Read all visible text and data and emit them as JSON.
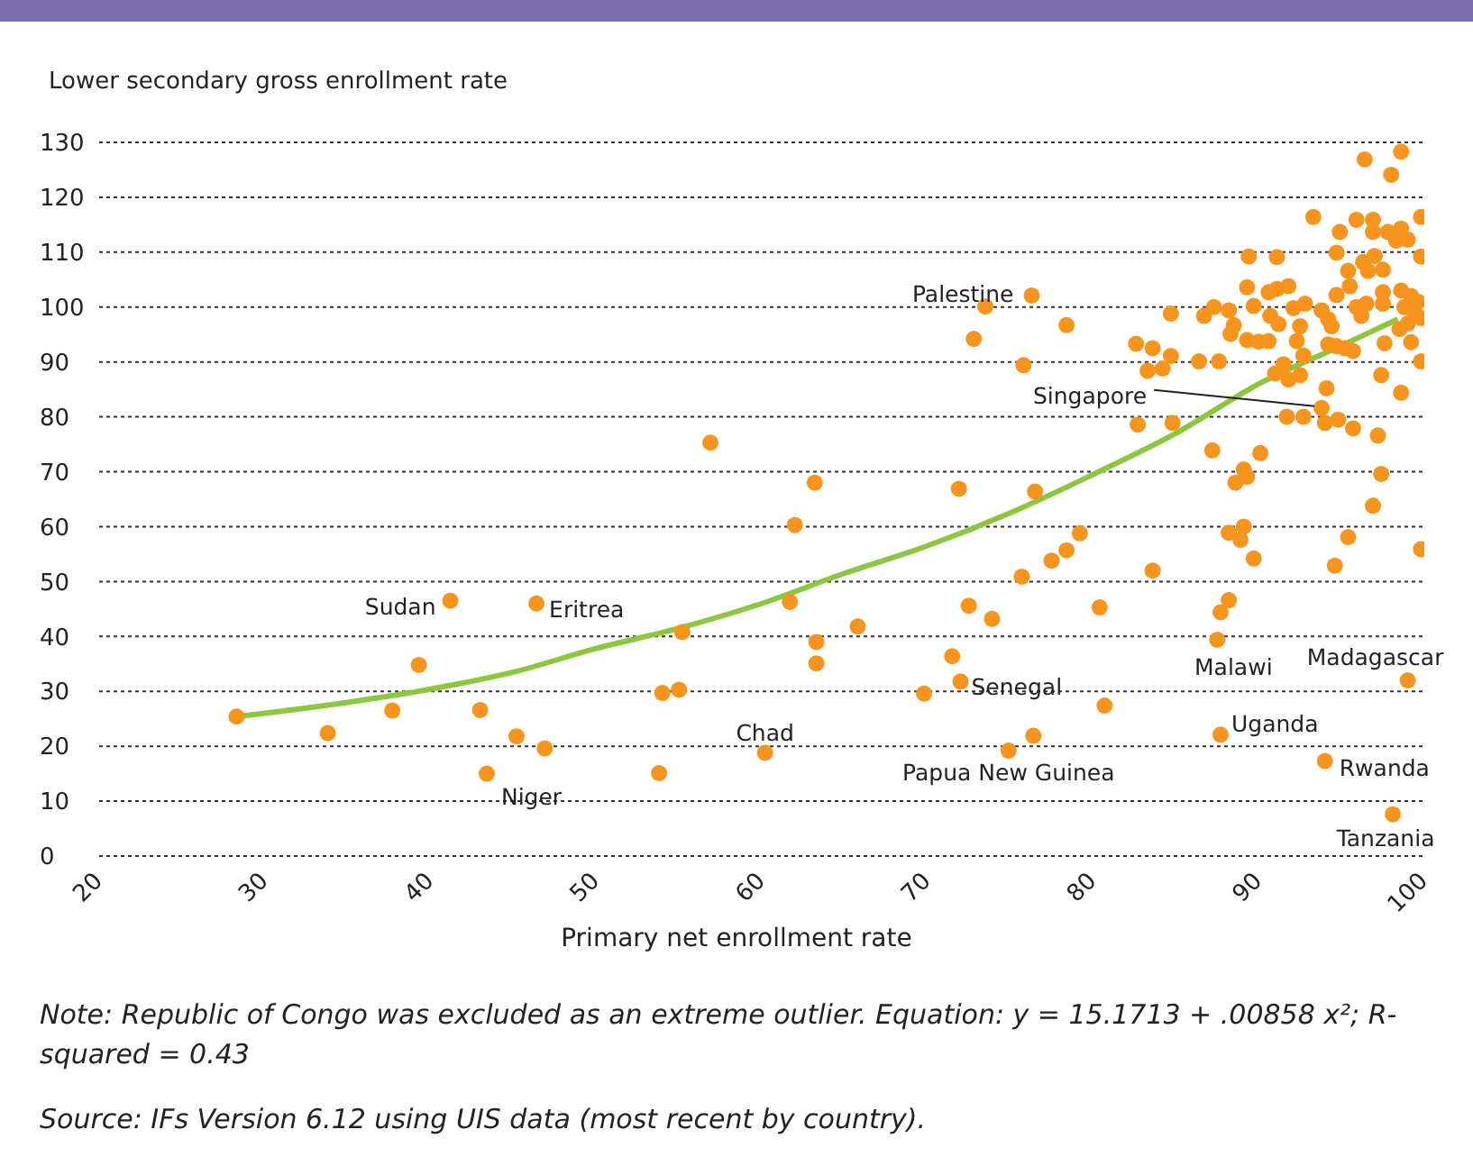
{
  "chart_data": {
    "type": "scatter",
    "xlabel": "Primary net enrollment rate",
    "ylabel": "Lower secondary gross enrollment rate",
    "xlim": [
      20,
      100
    ],
    "xticks": [
      20,
      30,
      40,
      50,
      60,
      70,
      80,
      90,
      100
    ],
    "ylim": [
      0,
      130
    ],
    "yticks": [
      0,
      10,
      20,
      30,
      40,
      50,
      60,
      70,
      80,
      90,
      100,
      110,
      120,
      130
    ],
    "grid": "y",
    "series": [
      {
        "type": "scatter",
        "color": "#f7941d",
        "marker": "circle",
        "x": [
          28.3,
          33.8,
          37.7,
          39.3,
          41.2,
          43.0,
          43.4,
          45.2,
          46.4,
          46.9,
          53.8,
          54.0,
          55.0,
          55.2,
          56.9,
          60.2,
          61.7,
          62.0,
          63.2,
          63.3,
          63.3,
          65.8,
          71.9,
          71.5,
          72.0,
          69.8,
          72.5,
          73.9,
          72.8,
          73.5,
          76.3,
          75.8,
          78.4,
          76.5,
          75.7,
          77.5,
          78.4,
          79.2,
          80.4,
          80.7,
          74.9,
          76.4,
          82.7,
          82.6,
          83.3,
          83.6,
          83.6,
          84.7,
          84.2,
          84.8,
          84.7,
          86.4,
          87.6,
          86.7,
          87.3,
          88.2,
          88.5,
          88.3,
          89.3,
          90.0,
          90.6,
          89.3,
          89.4,
          91.1,
          89.7,
          90.6,
          91.1,
          91.8,
          90.7,
          91.2,
          92.1,
          92.8,
          92.5,
          92.3,
          92.7,
          91.5,
          91.8,
          92.5,
          91.7,
          92.7,
          93.3,
          93.8,
          94.2,
          94.4,
          94.2,
          94.7,
          95.2,
          95.7,
          94.1,
          93.8,
          94.0,
          94.8,
          95.7,
          97.2,
          97.4,
          96.9,
          97.4,
          98.6,
          97.6,
          99.2,
          99.8,
          94.7,
          94.7,
          94.9,
          95.4,
          95.5,
          95.9,
          96.9,
          96.9,
          96.3,
          97.0,
          97.5,
          96.6,
          95.9,
          96.5,
          96.2,
          97.5,
          97.5,
          97.8,
          98.3,
          98.6,
          99.0,
          99.8,
          99.8,
          96.4,
          98.6,
          98.0,
          98.6,
          99.2,
          99.6,
          98.8,
          99.4,
          99.8,
          99.0,
          98.5,
          91.0,
          87.2,
          90.1,
          89.1,
          88.6,
          89.3,
          95.4,
          88.2,
          89.1,
          88.9,
          89.7,
          94.6,
          99.8,
          88.2,
          87.7,
          87.5,
          99.0,
          87.7,
          94.0,
          98.1
        ],
        "values": [
          25.4,
          22.4,
          26.5,
          34.8,
          46.5,
          26.6,
          15.0,
          21.8,
          46.0,
          19.6,
          15.1,
          29.7,
          30.3,
          40.8,
          75.3,
          18.8,
          46.3,
          60.3,
          68.0,
          39.0,
          35.1,
          41.8,
          66.9,
          36.4,
          31.8,
          29.6,
          45.6,
          43.2,
          94.2,
          100.1,
          102.1,
          89.4,
          96.7,
          66.4,
          50.9,
          53.8,
          55.7,
          58.8,
          45.3,
          27.4,
          19.2,
          21.9,
          78.6,
          93.3,
          88.4,
          52.0,
          92.5,
          91.1,
          88.8,
          78.9,
          98.8,
          90.1,
          90.1,
          98.4,
          100,
          99.4,
          96.7,
          95.1,
          94.0,
          93.7,
          93.8,
          103.6,
          109.2,
          109.1,
          100.2,
          102.7,
          103.3,
          103.8,
          98.4,
          96.9,
          99.8,
          100.6,
          96.5,
          93.8,
          91.2,
          89.6,
          86.8,
          87.6,
          80.0,
          80.0,
          116.4,
          99.4,
          97.8,
          96.5,
          93.2,
          92.9,
          92.5,
          92.0,
          85.2,
          81.6,
          78.9,
          79.5,
          77.9,
          76.6,
          69.6,
          63.8,
          87.6,
          84.4,
          93.4,
          93.6,
          90.1,
          102.2,
          109.9,
          113.7,
          106.6,
          103.8,
          115.9,
          115.9,
          113.7,
          108.2,
          109.3,
          106.8,
          106.6,
          100.0,
          100.6,
          98.4,
          100.6,
          102.7,
          113.7,
          112.1,
          114.3,
          112.3,
          116.4,
          109.2,
          126.9,
          128.3,
          124.1,
          103,
          102,
          101,
          100,
          99,
          98,
          97,
          96,
          87.9,
          73.9,
          73.4,
          70.4,
          68.0,
          69.1,
          58.1,
          58.9,
          60.0,
          57.6,
          54.2,
          52.9,
          55.9,
          46.6,
          44.4,
          39.4,
          32.0,
          22.1,
          17.3,
          7.6
        ]
      },
      {
        "type": "line",
        "color": "#8dc63f",
        "x": [
          28.3,
          35,
          40,
          45,
          50,
          55,
          60,
          65,
          70,
          75,
          80,
          85,
          90,
          95,
          98.4
        ],
        "values": [
          25.4,
          28,
          30.4,
          33.5,
          37.8,
          41.5,
          46,
          51.5,
          56.5,
          62.5,
          69.5,
          77,
          86,
          93,
          97.8
        ]
      }
    ],
    "annotations": [
      {
        "text": "Sudan",
        "x": 41.2,
        "y": 46.5
      },
      {
        "text": "Eritrea",
        "x": 46.4,
        "y": 46.0
      },
      {
        "text": "Niger",
        "x": 43.4,
        "y": 15.0
      },
      {
        "text": "Chad",
        "x": 60.2,
        "y": 18.8
      },
      {
        "text": "Palestine",
        "x": 76.3,
        "y": 102.1
      },
      {
        "text": "Singapore",
        "x": 93.8,
        "y": 81.6
      },
      {
        "text": "Senegal",
        "x": 72.0,
        "y": 31.8
      },
      {
        "text": "Papua New Guinea",
        "x": 74.9,
        "y": 19.2
      },
      {
        "text": "Malawi",
        "x": 87.5,
        "y": 39.4
      },
      {
        "text": "Madagascar",
        "x": 99.0,
        "y": 32.0
      },
      {
        "text": "Uganda",
        "x": 87.7,
        "y": 22.1
      },
      {
        "text": "Rwanda",
        "x": 94.0,
        "y": 17.3
      },
      {
        "text": "Tanzania",
        "x": 98.1,
        "y": 7.6
      },
      "Note: Republic of Congo was excluded as an extreme outlier. Equation: y = 15.1713 + .00858 x²; R-squared = 0.43",
      "Source: IFs Version 6.12 using UIS data (most recent by country)."
    ]
  }
}
